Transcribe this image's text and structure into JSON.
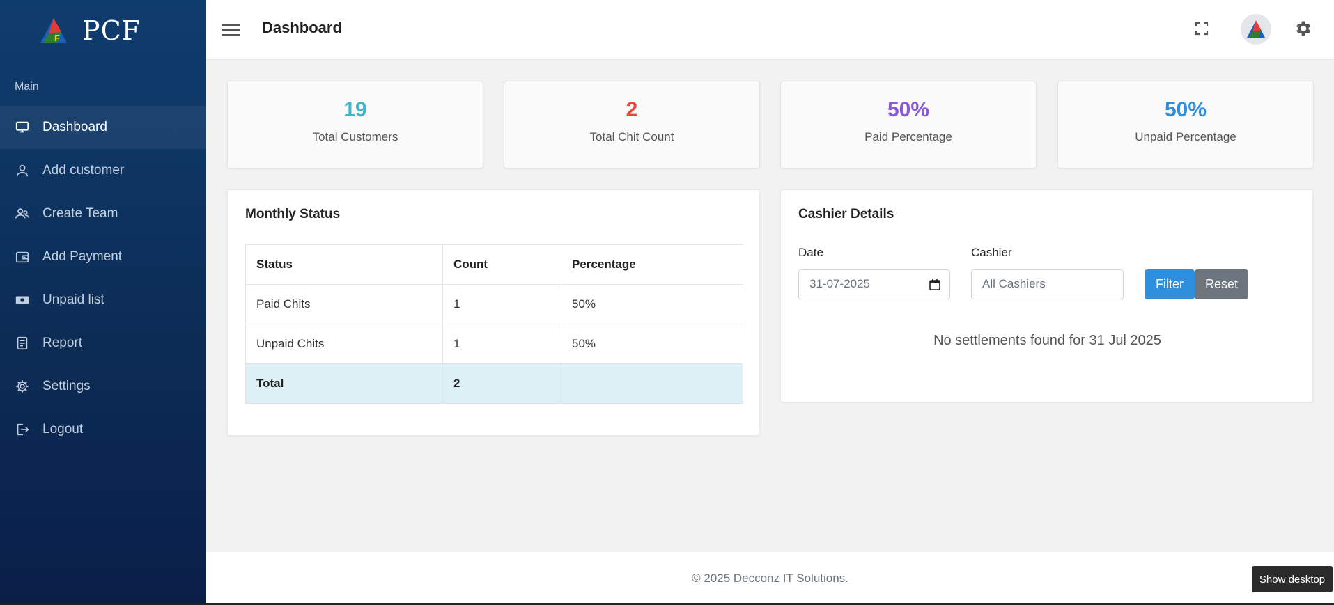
{
  "brand": {
    "name": "PCF"
  },
  "sidebar": {
    "section_label": "Main",
    "items": [
      {
        "label": "Dashboard",
        "icon": "monitor-icon",
        "active": true
      },
      {
        "label": "Add customer",
        "icon": "user-icon"
      },
      {
        "label": "Create Team",
        "icon": "team-icon"
      },
      {
        "label": "Add Payment",
        "icon": "wallet-icon"
      },
      {
        "label": "Unpaid list",
        "icon": "cash-icon"
      },
      {
        "label": "Report",
        "icon": "report-icon"
      },
      {
        "label": "Settings",
        "icon": "gear-icon"
      },
      {
        "label": "Logout",
        "icon": "logout-icon"
      }
    ]
  },
  "header": {
    "title": "Dashboard"
  },
  "stats": [
    {
      "value": "19",
      "label": "Total Customers",
      "color": "#3fb7c9"
    },
    {
      "value": "2",
      "label": "Total Chit Count",
      "color": "#e8453c"
    },
    {
      "value": "50%",
      "label": "Paid Percentage",
      "color": "#8b5ad8"
    },
    {
      "value": "50%",
      "label": "Unpaid Percentage",
      "color": "#2e8fe0"
    }
  ],
  "monthly": {
    "title": "Monthly Status",
    "headers": [
      "Status",
      "Count",
      "Percentage"
    ],
    "rows": [
      [
        "Paid Chits",
        "1",
        "50%"
      ],
      [
        "Unpaid Chits",
        "1",
        "50%"
      ]
    ],
    "total": [
      "Total",
      "2",
      ""
    ]
  },
  "cashier": {
    "title": "Cashier Details",
    "date_label": "Date",
    "date_value": "31-07-2025",
    "cashier_label": "Cashier",
    "cashier_value": "All Cashiers",
    "filter_label": "Filter",
    "reset_label": "Reset",
    "empty_message": "No settlements found for 31 Jul 2025"
  },
  "footer": {
    "text": "© 2025 Decconz IT Solutions."
  },
  "taskbar": {
    "show_desktop": "Show desktop"
  },
  "colors": {
    "primary": "#2f8fdf",
    "secondary": "#6c757d",
    "sidebar_top": "#0f3d6e",
    "sidebar_bottom": "#0a1f48"
  }
}
